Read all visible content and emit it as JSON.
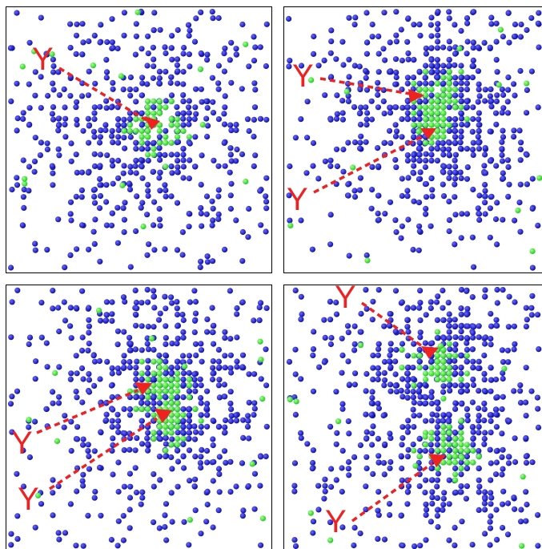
{
  "colors": {
    "background": "#ffffff",
    "frame": "#000000",
    "blue_particle": "#1010a8",
    "blue_highlight": "#6a6aff",
    "green_particle": "#22cc22",
    "green_highlight": "#a8ff90",
    "marker": "#ee2222"
  },
  "marker_label": "Y",
  "panels": [
    {
      "id": "top-left",
      "marker_count": 1
    },
    {
      "id": "top-right",
      "marker_count": 2
    },
    {
      "id": "bottom-left",
      "marker_count": 2
    },
    {
      "id": "bottom-right",
      "marker_count": 2
    }
  ]
}
